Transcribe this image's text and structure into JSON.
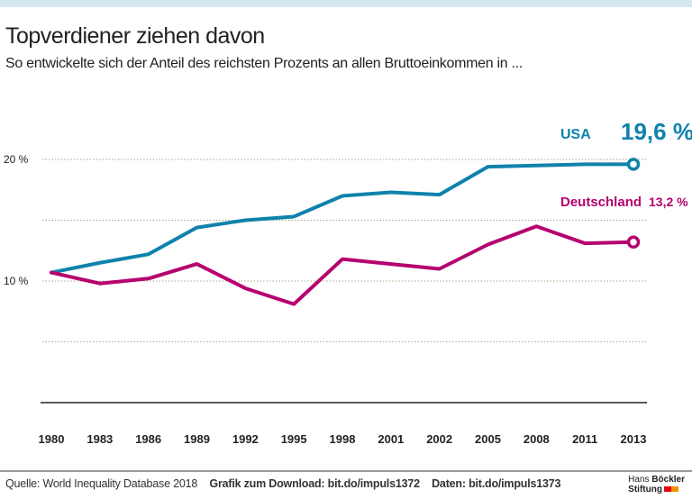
{
  "title": "Topverdiener ziehen davon",
  "subtitle": "So entwickelte sich der Anteil des reichsten Prozents an allen Bruttoeinkommen in ...",
  "chart_data": {
    "type": "line",
    "title": "Topverdiener ziehen davon",
    "subtitle": "So entwickelte sich der Anteil des reichsten Prozents an allen Bruttoeinkommen in ...",
    "categories": [
      "1980",
      "1983",
      "1986",
      "1989",
      "1992",
      "1995",
      "1998",
      "2001",
      "2002",
      "2005",
      "2008",
      "2011",
      "2013"
    ],
    "yticks": [
      {
        "value": 10,
        "label": "10 %"
      },
      {
        "value": 20,
        "label": "20 %"
      }
    ],
    "gridlines": [
      5,
      10,
      15,
      20
    ],
    "ylim": [
      0,
      20
    ],
    "grid": true,
    "series": [
      {
        "name": "USA",
        "end_label": "19,6 %",
        "color": "#0f82ac",
        "values": [
          10.7,
          11.5,
          12.2,
          14.4,
          15.0,
          15.3,
          17.0,
          17.3,
          17.1,
          19.4,
          19.5,
          19.6,
          19.6
        ]
      },
      {
        "name": "Deutschland",
        "end_label": "13,2 %",
        "color": "#b5006e",
        "values": [
          10.7,
          9.8,
          10.2,
          11.4,
          9.4,
          8.1,
          11.8,
          11.4,
          11.0,
          13.0,
          14.5,
          13.1,
          13.2
        ]
      }
    ]
  },
  "footer": {
    "source": "Quelle: World Inequality Database 2018",
    "download": "Grafik zum Download: bit.do/impuls1372",
    "data": "Daten: bit.do/impuls1373"
  },
  "logo": {
    "line1a": "Hans",
    "line1b": "Böckler",
    "line2": "Stiftung",
    "colors": [
      "#e30613",
      "#f39200"
    ]
  }
}
